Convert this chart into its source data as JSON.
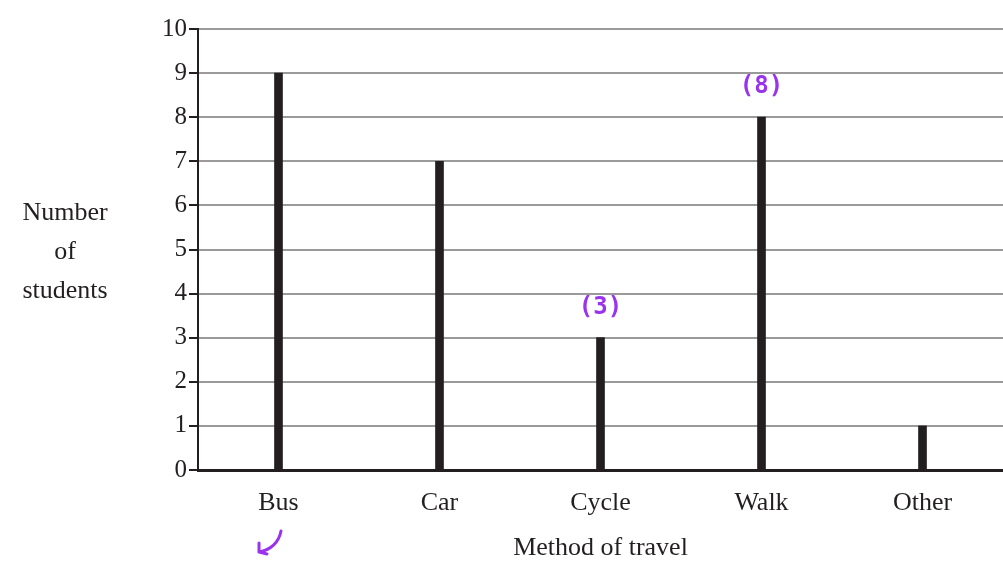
{
  "chart_data": {
    "type": "bar",
    "categories": [
      "Bus",
      "Car",
      "Cycle",
      "Walk",
      "Other"
    ],
    "values": [
      9,
      7,
      3,
      8,
      1
    ],
    "color": "#231f20",
    "xlabel": "Method of travel",
    "ylabel": "Number of students",
    "ylim": [
      0,
      10
    ],
    "yticks": [
      0,
      1,
      2,
      3,
      4,
      5,
      6,
      7,
      8,
      9,
      10
    ],
    "grid": "y",
    "legend": false,
    "annotations": [
      {
        "text": "(3)",
        "x": "Cycle",
        "y": 3
      },
      {
        "text": "(8)",
        "x": "Walk",
        "y": 8
      }
    ]
  }
}
